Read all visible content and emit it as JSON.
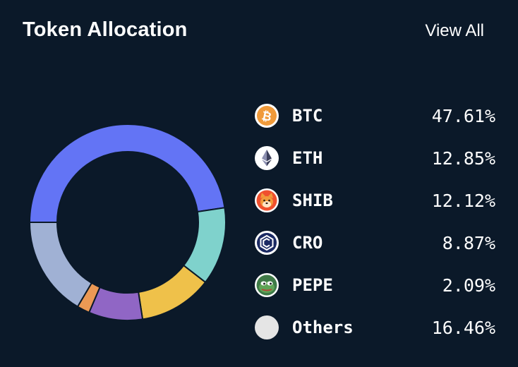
{
  "header": {
    "title": "Token Allocation",
    "view_all_label": "View All"
  },
  "chart_data": {
    "type": "pie",
    "style": "donut",
    "title": "Token Allocation",
    "categories": [
      "BTC",
      "ETH",
      "SHIB",
      "CRO",
      "PEPE",
      "Others"
    ],
    "values": [
      47.61,
      12.85,
      12.12,
      8.87,
      2.09,
      16.46
    ],
    "colors": [
      "#6374f5",
      "#7fd2cc",
      "#efc14a",
      "#9066c5",
      "#ec9954",
      "#a0b1d4"
    ]
  },
  "legend": {
    "items": [
      {
        "symbol": "BTC",
        "percent": "47.61%",
        "icon": "bitcoin-icon"
      },
      {
        "symbol": "ETH",
        "percent": "12.85%",
        "icon": "ethereum-icon"
      },
      {
        "symbol": "SHIB",
        "percent": "12.12%",
        "icon": "shiba-inu-icon"
      },
      {
        "symbol": "CRO",
        "percent": "8.87%",
        "icon": "cronos-icon"
      },
      {
        "symbol": "PEPE",
        "percent": "2.09%",
        "icon": "pepe-icon"
      },
      {
        "symbol": "Others",
        "percent": "16.46%",
        "icon": "others-icon"
      }
    ]
  }
}
